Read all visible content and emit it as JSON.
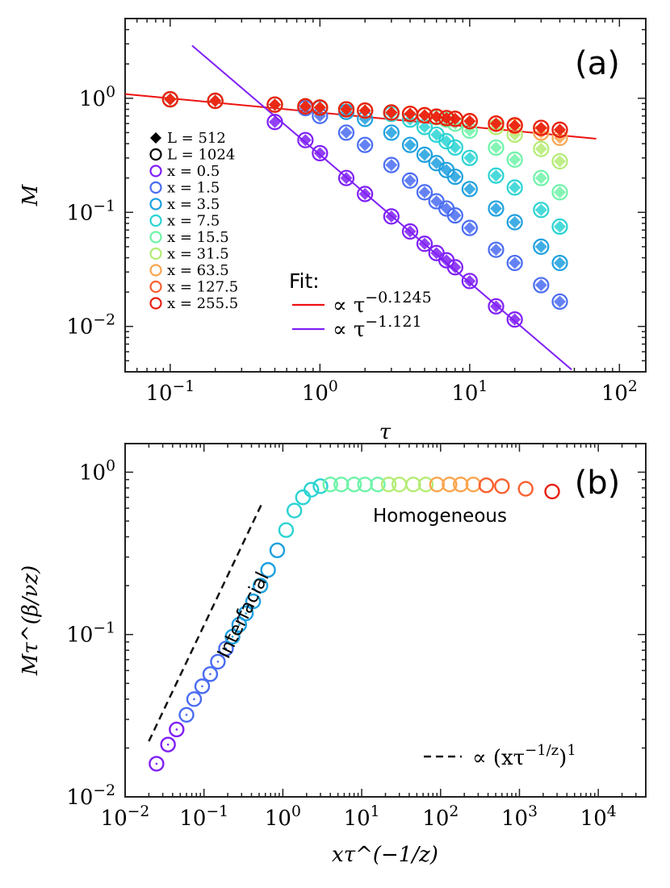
{
  "chart_data": [
    {
      "panel": "(a)",
      "type": "scatter",
      "xscale": "log",
      "yscale": "log",
      "xlim": [
        0.05,
        150
      ],
      "ylim": [
        0.004,
        5
      ],
      "xlabel": "τ",
      "ylabel": "M",
      "xticks": [
        {
          "v": 0.1,
          "m": "10",
          "e": "−1"
        },
        {
          "v": 1,
          "m": "10",
          "e": "0"
        },
        {
          "v": 10,
          "m": "10",
          "e": "1"
        },
        {
          "v": 100,
          "m": "10",
          "e": "2"
        }
      ],
      "yticks": [
        {
          "v": 0.01,
          "m": "10",
          "e": "−2"
        },
        {
          "v": 0.1,
          "m": "10",
          "e": "−1"
        },
        {
          "v": 1,
          "m": "10",
          "e": "0"
        }
      ],
      "tau": [
        0.1,
        0.2,
        0.5,
        0.8,
        1,
        1.5,
        2,
        3,
        4,
        5,
        6,
        7,
        8,
        10,
        15,
        20,
        30,
        40
      ],
      "legend_markers": [
        {
          "label": "L = 512",
          "marker": "diamond"
        },
        {
          "label": "L = 1024",
          "marker": "circle"
        }
      ],
      "series": [
        {
          "name": "x = 0.5",
          "color": "#7f1ff5",
          "values": [
            0.98,
            0.95,
            0.62,
            0.43,
            0.33,
            0.2,
            0.145,
            0.092,
            0.068,
            0.053,
            0.044,
            0.038,
            0.033,
            0.025,
            0.015,
            0.0115
          ]
        },
        {
          "name": "x = 1.5",
          "color": "#4a6cf2",
          "values": [
            0.98,
            0.95,
            0.88,
            0.82,
            0.7,
            0.5,
            0.39,
            0.26,
            0.19,
            0.15,
            0.125,
            0.108,
            0.094,
            0.073,
            0.047,
            0.036,
            0.023,
            0.0165
          ]
        },
        {
          "name": "x = 3.5",
          "color": "#1ea0df",
          "values": [
            0.98,
            0.95,
            0.88,
            0.85,
            0.82,
            0.76,
            0.66,
            0.5,
            0.39,
            0.32,
            0.27,
            0.235,
            0.205,
            0.16,
            0.108,
            0.082,
            0.05,
            0.036
          ]
        },
        {
          "name": "x = 7.5",
          "color": "#2ad3d3",
          "values": [
            0.98,
            0.95,
            0.88,
            0.85,
            0.83,
            0.8,
            0.78,
            0.73,
            0.65,
            0.56,
            0.48,
            0.42,
            0.37,
            0.3,
            0.21,
            0.165,
            0.105,
            0.075
          ]
        },
        {
          "name": "x = 15.5",
          "color": "#6ef3a8",
          "values": [
            0.98,
            0.95,
            0.88,
            0.85,
            0.83,
            0.8,
            0.78,
            0.75,
            0.73,
            0.71,
            0.68,
            0.65,
            0.6,
            0.52,
            0.37,
            0.29,
            0.2,
            0.15
          ]
        },
        {
          "name": "x = 31.5",
          "color": "#b4ec74",
          "values": [
            0.98,
            0.95,
            0.88,
            0.85,
            0.83,
            0.8,
            0.78,
            0.75,
            0.73,
            0.71,
            0.69,
            0.67,
            0.66,
            0.63,
            0.56,
            0.48,
            0.36,
            0.28
          ]
        },
        {
          "name": "x = 63.5",
          "color": "#f9a54e",
          "values": [
            0.98,
            0.95,
            0.88,
            0.85,
            0.83,
            0.8,
            0.78,
            0.75,
            0.73,
            0.71,
            0.69,
            0.67,
            0.66,
            0.63,
            0.6,
            0.57,
            0.5,
            0.45
          ]
        },
        {
          "name": "x = 127.5",
          "color": "#f9602f",
          "values": [
            0.98,
            0.95,
            0.88,
            0.85,
            0.83,
            0.8,
            0.78,
            0.75,
            0.73,
            0.71,
            0.69,
            0.67,
            0.66,
            0.63,
            0.6,
            0.58,
            0.55,
            0.53
          ]
        },
        {
          "name": "x = 255.5",
          "color": "#e81f10",
          "values": [
            0.98,
            0.95,
            0.88,
            0.85,
            0.83,
            0.8,
            0.78,
            0.75,
            0.73,
            0.71,
            0.69,
            0.67,
            0.66,
            0.63,
            0.6,
            0.58,
            0.55,
            0.53
          ]
        }
      ],
      "fits": [
        {
          "exponent": -0.1245,
          "prefactor": 0.75,
          "color": "#ee1111",
          "x_range": [
            0.05,
            70
          ]
        },
        {
          "exponent": -1.121,
          "prefactor": 0.32,
          "color": "#7f1ff5",
          "x_range": [
            0.14,
            48
          ]
        }
      ],
      "fit_title": "Fit:",
      "fit_labels": [
        "∝ τ",
        "∝ τ"
      ],
      "fit_exponent_labels": [
        "−0.1245",
        "−1.121"
      ]
    },
    {
      "panel": "(b)",
      "type": "scatter",
      "xscale": "log",
      "yscale": "log",
      "xlim": [
        0.01,
        40000
      ],
      "ylim": [
        0.01,
        1.5
      ],
      "xlabel": "xτ^(−1/z)",
      "ylabel": "Mτ^(β/νz)",
      "xticks": [
        {
          "v": 0.01,
          "m": "10",
          "e": "−2"
        },
        {
          "v": 0.1,
          "m": "10",
          "e": "−1"
        },
        {
          "v": 1,
          "m": "10",
          "e": "0"
        },
        {
          "v": 10,
          "m": "10",
          "e": "1"
        },
        {
          "v": 100,
          "m": "10",
          "e": "2"
        },
        {
          "v": 1000,
          "m": "10",
          "e": "3"
        },
        {
          "v": 10000,
          "m": "10",
          "e": "4"
        }
      ],
      "yticks": [
        {
          "v": 0.01,
          "m": "10",
          "e": "−2"
        },
        {
          "v": 0.1,
          "m": "10",
          "e": "−1"
        },
        {
          "v": 1,
          "m": "10",
          "e": "0"
        }
      ],
      "collapse_colors": [
        "#7f1ff5",
        "#4a6cf2",
        "#1ea0df",
        "#2ad3d3",
        "#6ef3a8",
        "#b4ec74",
        "#f9a54e",
        "#f9602f",
        "#e81f10"
      ],
      "collapse_x": [
        0.025,
        0.035,
        0.045,
        0.06,
        0.075,
        0.095,
        0.12,
        0.15,
        0.19,
        0.23,
        0.28,
        0.34,
        0.42,
        0.52,
        0.65,
        0.85,
        1.1,
        1.4,
        1.8,
        2.3,
        3,
        4,
        5.5,
        8,
        11,
        16,
        22,
        30,
        45,
        65,
        90,
        130,
        180,
        260,
        380,
        600,
        1200,
        2600
      ],
      "collapse_y": [
        0.016,
        0.021,
        0.026,
        0.032,
        0.04,
        0.048,
        0.057,
        0.068,
        0.082,
        0.097,
        0.115,
        0.135,
        0.16,
        0.2,
        0.25,
        0.33,
        0.44,
        0.58,
        0.7,
        0.78,
        0.82,
        0.84,
        0.84,
        0.84,
        0.84,
        0.84,
        0.84,
        0.84,
        0.84,
        0.84,
        0.84,
        0.84,
        0.84,
        0.84,
        0.83,
        0.82,
        0.79,
        0.76
      ],
      "guide_line": {
        "x": [
          0.02,
          0.55
        ],
        "y": [
          0.022,
          0.65
        ]
      },
      "legend_label": "∝ (xτ",
      "legend_exponent": "−1/z",
      "legend_label_tail": ")",
      "legend_tail_exponent": "1",
      "annotations": [
        "Homogeneous",
        "Interfacial"
      ]
    }
  ]
}
